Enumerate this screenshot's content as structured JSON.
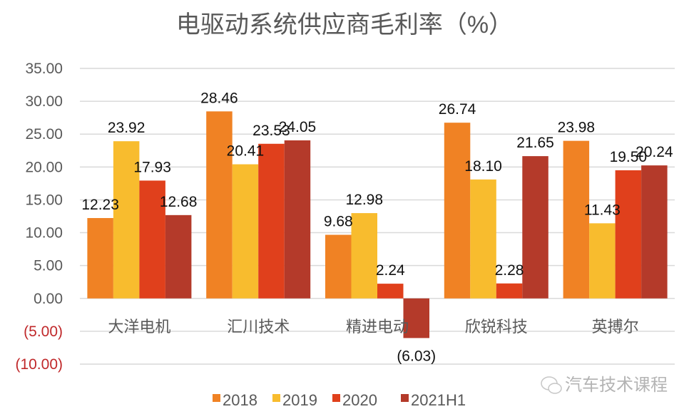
{
  "chart_data": {
    "type": "bar",
    "title": "电驱动系统供应商毛利率（%）",
    "categories": [
      "大洋电机",
      "汇川技术",
      "精进电动",
      "欣锐科技",
      "英搏尔"
    ],
    "series": [
      {
        "name": "2018",
        "color": "#F08224",
        "values": [
          12.23,
          28.46,
          9.68,
          26.74,
          23.98
        ]
      },
      {
        "name": "2019",
        "color": "#F8BC2E",
        "values": [
          23.92,
          20.41,
          12.98,
          18.1,
          11.43
        ]
      },
      {
        "name": "2020",
        "color": "#E0401C",
        "values": [
          17.93,
          23.53,
          2.24,
          2.28,
          19.5
        ]
      },
      {
        "name": "2021H1",
        "color": "#B43A2A",
        "values": [
          12.68,
          24.05,
          -6.03,
          21.65,
          20.24
        ]
      }
    ],
    "yticks": [
      "35.00",
      "30.00",
      "25.00",
      "20.00",
      "15.00",
      "10.00",
      "5.00",
      "0.00",
      "(5.00)",
      "(10.00)"
    ],
    "ylim": [
      -10,
      35
    ],
    "negative_tick_color": "#C0282A",
    "grid": true,
    "legend": "bottom",
    "xlabel": "",
    "ylabel": ""
  },
  "watermark": "汽车技术课程"
}
